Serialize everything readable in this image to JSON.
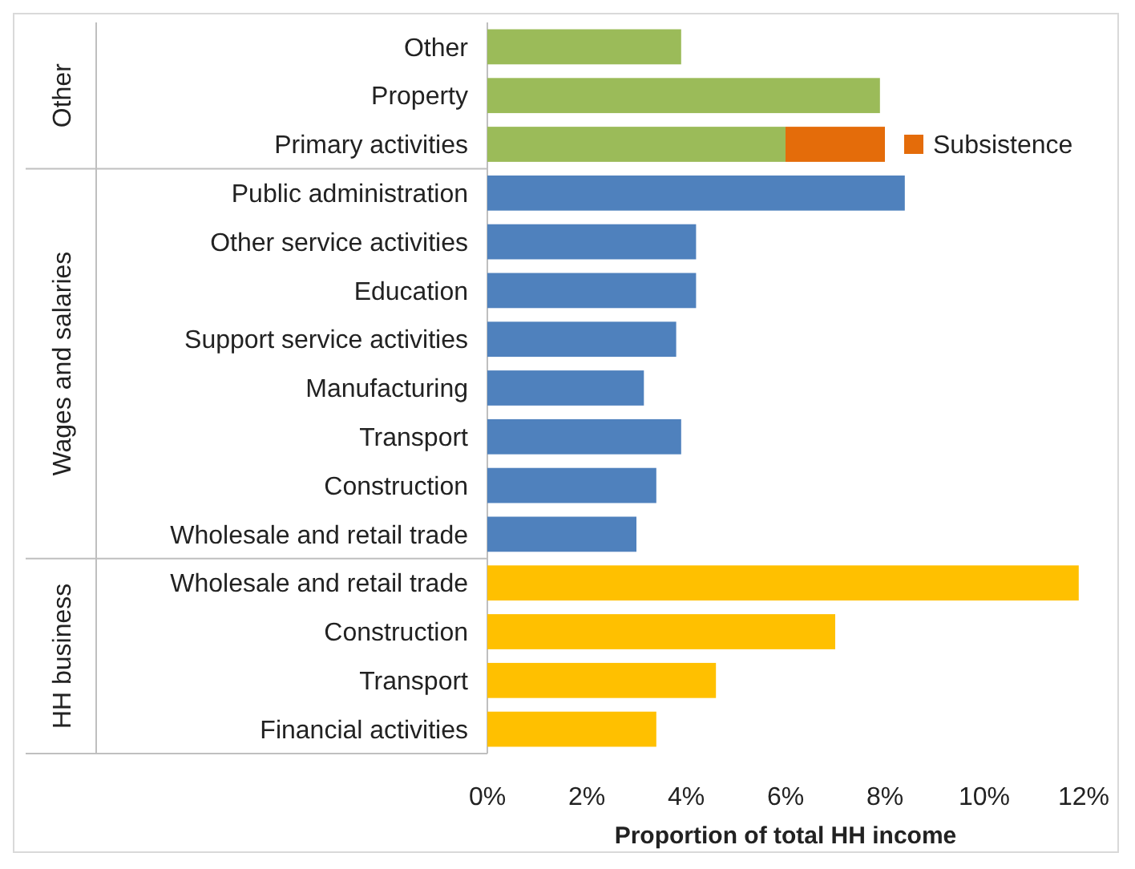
{
  "chart_data": {
    "type": "bar",
    "orientation": "horizontal",
    "stacked": true,
    "categories": [
      "Other",
      "Property",
      "Primary activities",
      "Public administration",
      "Other service activities",
      "Education",
      "Support service activities",
      "Manufacturing",
      "Transport",
      "Construction",
      "Wholesale and retail trade",
      "Wholesale and retail trade",
      "Construction",
      "Transport",
      "Financial activities"
    ],
    "series": [
      {
        "colors": [
          "#9bbb59",
          "#9bbb59",
          "#9bbb59",
          "#4f81bd",
          "#4f81bd",
          "#4f81bd",
          "#4f81bd",
          "#4f81bd",
          "#4f81bd",
          "#4f81bd",
          "#4f81bd",
          "#ffc000",
          "#ffc000",
          "#ffc000",
          "#ffc000"
        ],
        "values": [
          3.9,
          7.9,
          6.0,
          8.4,
          4.2,
          4.2,
          3.8,
          3.15,
          3.9,
          3.4,
          3.0,
          11.9,
          7.0,
          4.6,
          3.4
        ]
      },
      {
        "name": "Subsistence",
        "color": "#e46c0a",
        "values": [
          null,
          null,
          2.0,
          null,
          null,
          null,
          null,
          null,
          null,
          null,
          null,
          null,
          null,
          null,
          null
        ]
      }
    ],
    "annotations": [
      "Other",
      "Wages and salaries",
      "HH business"
    ],
    "xlabel": "Proportion of total HH income",
    "xlim": [
      0,
      12
    ],
    "xticks": [
      {
        "value": 0,
        "label": "0%"
      },
      {
        "value": 2,
        "label": "2%"
      },
      {
        "value": 4,
        "label": "4%"
      },
      {
        "value": 6,
        "label": "6%"
      },
      {
        "value": 8,
        "label": "8%"
      },
      {
        "value": 10,
        "label": "10%"
      },
      {
        "value": 12,
        "label": "12%"
      }
    ],
    "legend": "top right"
  }
}
